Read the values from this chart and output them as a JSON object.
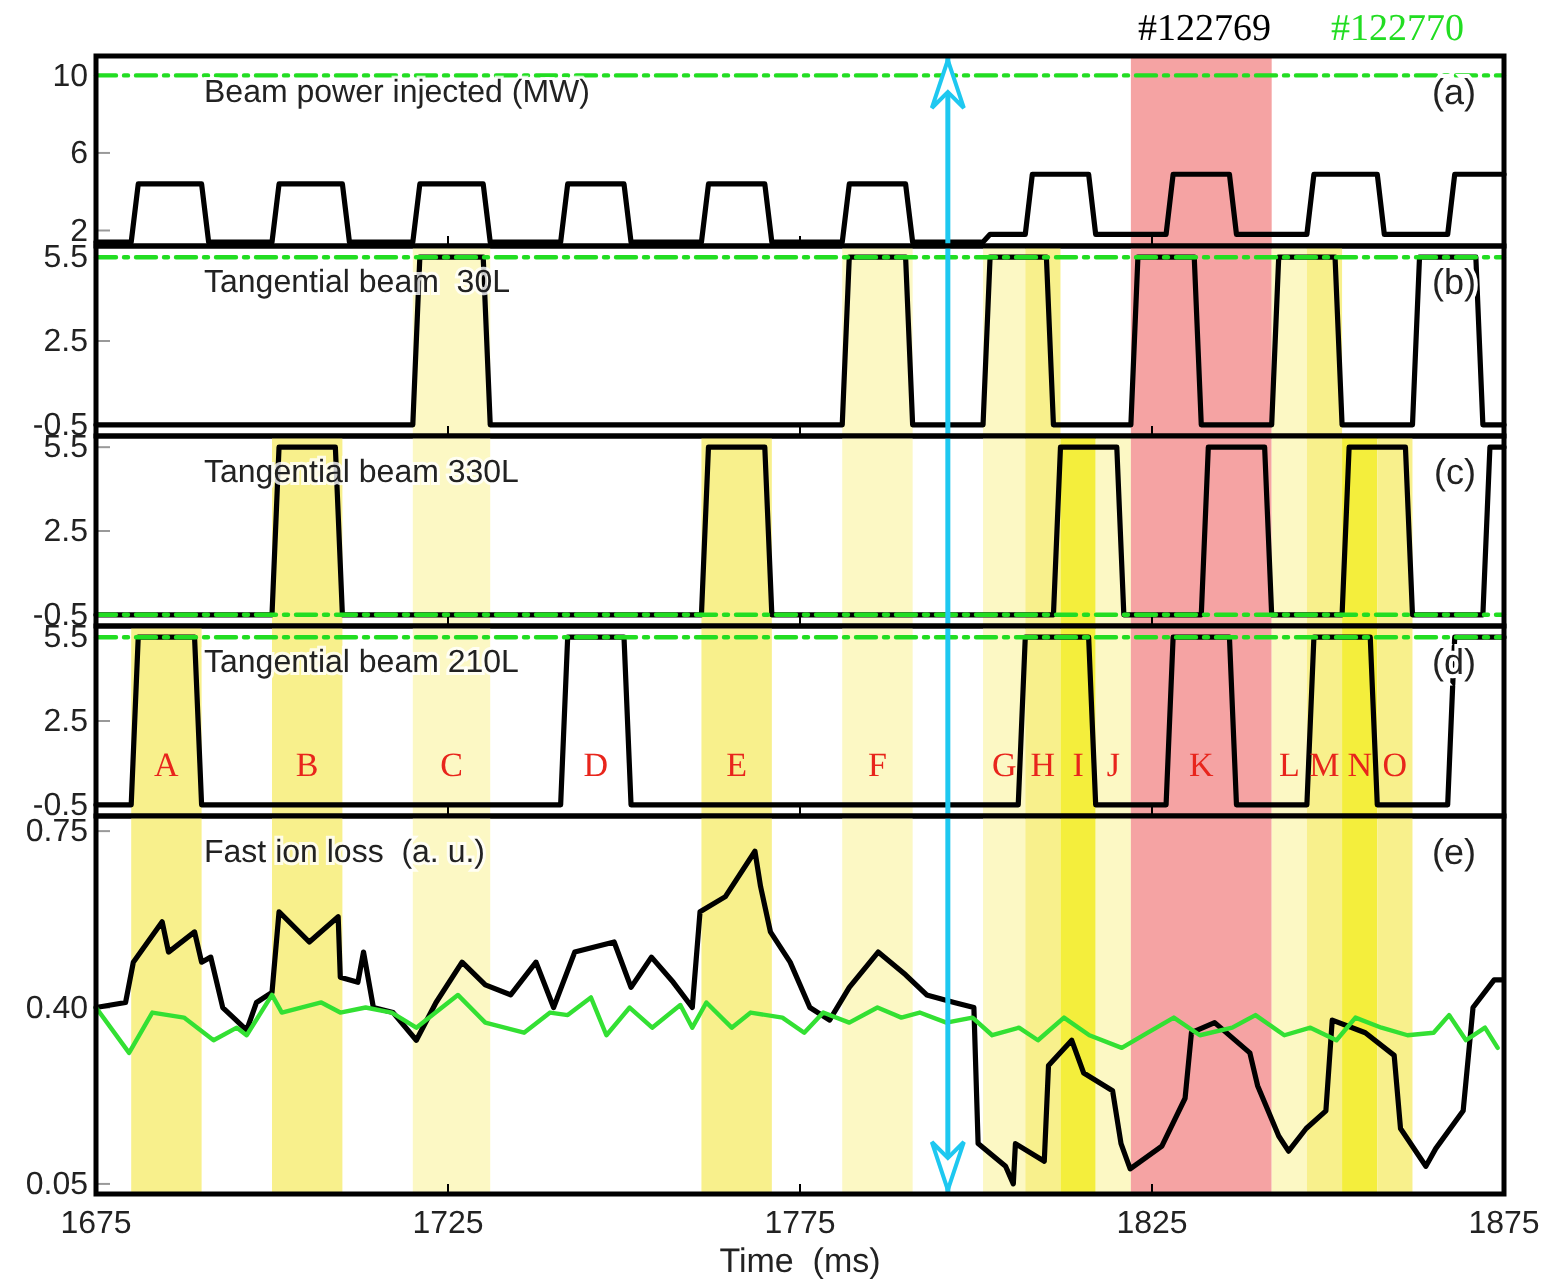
{
  "chart_data": [
    {
      "type": "line",
      "title": "Beam power injected (MW)",
      "annotations": [
        "(a)"
      ],
      "xlim": [
        1675,
        1875
      ],
      "xticks": [
        1675,
        1725,
        1775,
        1825,
        1875
      ],
      "ylim": [
        1.2,
        11
      ],
      "yticks": [
        2,
        6,
        10
      ],
      "tick_labels": "y",
      "legend": "top right",
      "series": [
        {
          "name": "#122769",
          "color": "#000000",
          "x": [
            1675,
            1680,
            1681,
            1690,
            1691,
            1700,
            1701,
            1710,
            1711,
            1720,
            1721,
            1730,
            1731,
            1741,
            1742,
            1750,
            1751,
            1761,
            1762,
            1770,
            1771,
            1781,
            1782,
            1790,
            1791,
            1801,
            1802,
            1807,
            1808,
            1816,
            1817,
            1827,
            1828,
            1836,
            1837,
            1847,
            1848,
            1857,
            1858,
            1867,
            1868,
            1875
          ],
          "values": [
            1.4,
            1.4,
            4.4,
            4.4,
            1.4,
            1.4,
            4.4,
            4.4,
            1.4,
            1.4,
            4.4,
            4.4,
            1.4,
            1.4,
            4.4,
            4.4,
            1.4,
            1.4,
            4.4,
            4.4,
            1.4,
            1.4,
            4.4,
            4.4,
            1.4,
            1.4,
            1.8,
            1.8,
            4.9,
            4.9,
            1.8,
            1.8,
            4.9,
            4.9,
            1.8,
            1.8,
            4.9,
            4.9,
            1.8,
            1.8,
            4.9,
            4.9
          ]
        },
        {
          "name": "#122770",
          "color": "#22dd22",
          "line_style": "dashed",
          "x": [
            1675,
            1875
          ],
          "values": [
            10,
            10
          ]
        }
      ],
      "bands": [
        {
          "axis": "x",
          "from": 1822,
          "to": 1842,
          "color": "#f5a3a3"
        }
      ],
      "ref_lines": [
        {
          "axis": "x",
          "value": 1796,
          "color": "#1ec8f0"
        }
      ]
    },
    {
      "type": "line",
      "title": "Tangential beam  30L",
      "annotations": [
        "(b)"
      ],
      "xlim": [
        1675,
        1875
      ],
      "xticks": [
        1675,
        1725,
        1775,
        1825,
        1875
      ],
      "ylim": [
        -0.9,
        5.9
      ],
      "yticks": [
        -0.5,
        2.5,
        5.5
      ],
      "tick_labels": "y",
      "series": [
        {
          "color": "#000000",
          "x": [
            1675,
            1720,
            1721,
            1730,
            1731,
            1781,
            1782,
            1790,
            1791,
            1801,
            1802,
            1810,
            1811,
            1822,
            1823,
            1831,
            1832,
            1842,
            1843,
            1851,
            1852,
            1862,
            1863,
            1871,
            1872,
            1875
          ],
          "values": [
            -0.5,
            -0.5,
            5.5,
            5.5,
            -0.5,
            -0.5,
            5.5,
            5.5,
            -0.5,
            -0.5,
            5.5,
            5.5,
            -0.5,
            -0.5,
            5.5,
            5.5,
            -0.5,
            -0.5,
            5.5,
            5.5,
            -0.5,
            -0.5,
            5.5,
            5.5,
            -0.5,
            -0.5
          ]
        },
        {
          "color": "#22dd22",
          "line_style": "dashed",
          "x": [
            1675,
            1875
          ],
          "values": [
            5.5,
            5.5
          ]
        }
      ],
      "bands": [
        {
          "axis": "x",
          "from": 1720,
          "to": 1731,
          "color": "#fcf8c4"
        },
        {
          "axis": "x",
          "from": 1781,
          "to": 1791,
          "color": "#fcf8c4"
        },
        {
          "axis": "x",
          "from": 1801,
          "to": 1807,
          "color": "#fcf8c4"
        },
        {
          "axis": "x",
          "from": 1807,
          "to": 1812,
          "color": "#f8f08c"
        },
        {
          "axis": "x",
          "from": 1822,
          "to": 1842,
          "color": "#f5a3a3"
        },
        {
          "axis": "x",
          "from": 1842,
          "to": 1847,
          "color": "#fcf8c4"
        },
        {
          "axis": "x",
          "from": 1847,
          "to": 1852,
          "color": "#f8f08c"
        }
      ],
      "ref_lines": [
        {
          "axis": "x",
          "value": 1796,
          "color": "#1ec8f0"
        }
      ]
    },
    {
      "type": "line",
      "title": "Tangential beam 330L",
      "annotations": [
        "(c)"
      ],
      "xlim": [
        1675,
        1875
      ],
      "xticks": [
        1675,
        1725,
        1775,
        1825,
        1875
      ],
      "ylim": [
        -0.9,
        5.9
      ],
      "yticks": [
        -0.5,
        2.5,
        5.5
      ],
      "tick_labels": "y",
      "series": [
        {
          "color": "#000000",
          "x": [
            1675,
            1700,
            1701,
            1709,
            1710,
            1761,
            1762,
            1770,
            1771,
            1811,
            1812,
            1820,
            1821,
            1832,
            1833,
            1841,
            1842,
            1852,
            1853,
            1861,
            1862,
            1872,
            1873,
            1875
          ],
          "values": [
            -0.5,
            -0.5,
            5.5,
            5.5,
            -0.5,
            -0.5,
            5.5,
            5.5,
            -0.5,
            -0.5,
            5.5,
            5.5,
            -0.5,
            -0.5,
            5.5,
            5.5,
            -0.5,
            -0.5,
            5.5,
            5.5,
            -0.5,
            -0.5,
            5.5,
            5.5
          ]
        },
        {
          "color": "#22dd22",
          "line_style": "dashed",
          "x": [
            1675,
            1875
          ],
          "values": [
            -0.5,
            -0.5
          ]
        }
      ],
      "bands": [
        {
          "axis": "x",
          "from": 1700,
          "to": 1710,
          "color": "#f8f08c"
        },
        {
          "axis": "x",
          "from": 1720,
          "to": 1731,
          "color": "#fcf8c4"
        },
        {
          "axis": "x",
          "from": 1761,
          "to": 1771,
          "color": "#f8f08c"
        },
        {
          "axis": "x",
          "from": 1781,
          "to": 1791,
          "color": "#fcf8c4"
        },
        {
          "axis": "x",
          "from": 1801,
          "to": 1807,
          "color": "#fcf8c4"
        },
        {
          "axis": "x",
          "from": 1807,
          "to": 1812,
          "color": "#f8f08c"
        },
        {
          "axis": "x",
          "from": 1812,
          "to": 1817,
          "color": "#f4ee3c"
        },
        {
          "axis": "x",
          "from": 1817,
          "to": 1822,
          "color": "#fcf8c4"
        },
        {
          "axis": "x",
          "from": 1822,
          "to": 1842,
          "color": "#f5a3a3"
        },
        {
          "axis": "x",
          "from": 1842,
          "to": 1847,
          "color": "#fcf8c4"
        },
        {
          "axis": "x",
          "from": 1847,
          "to": 1852,
          "color": "#f8f08c"
        },
        {
          "axis": "x",
          "from": 1852,
          "to": 1857,
          "color": "#f4ee3c"
        },
        {
          "axis": "x",
          "from": 1857,
          "to": 1862,
          "color": "#f8f08c"
        }
      ],
      "ref_lines": [
        {
          "axis": "x",
          "value": 1796,
          "color": "#1ec8f0"
        }
      ]
    },
    {
      "type": "line",
      "title": "Tangential beam 210L",
      "annotations": [
        "(d)",
        "D"
      ],
      "xlim": [
        1675,
        1875
      ],
      "xticks": [
        1675,
        1725,
        1775,
        1825,
        1875
      ],
      "ylim": [
        -0.9,
        5.9
      ],
      "yticks": [
        -0.5,
        2.5,
        5.5
      ],
      "tick_labels": "y",
      "series": [
        {
          "color": "#000000",
          "x": [
            1675,
            1680,
            1681,
            1689,
            1690,
            1741,
            1742,
            1750,
            1751,
            1806,
            1807,
            1816,
            1817,
            1827,
            1828,
            1836,
            1837,
            1847,
            1848,
            1856,
            1857,
            1867,
            1868,
            1875
          ],
          "values": [
            -0.5,
            -0.5,
            5.5,
            5.5,
            -0.5,
            -0.5,
            5.5,
            5.5,
            -0.5,
            -0.5,
            5.5,
            5.5,
            -0.5,
            -0.5,
            5.5,
            5.5,
            -0.5,
            -0.5,
            5.5,
            5.5,
            -0.5,
            -0.5,
            5.5,
            5.5
          ]
        },
        {
          "color": "#22dd22",
          "line_style": "dashed",
          "x": [
            1675,
            1875
          ],
          "values": [
            5.5,
            5.5
          ]
        }
      ],
      "bands": [
        {
          "axis": "x",
          "from": 1680,
          "to": 1690,
          "color": "#f8f08c",
          "label": "A"
        },
        {
          "axis": "x",
          "from": 1700,
          "to": 1710,
          "color": "#f8f08c",
          "label": "B"
        },
        {
          "axis": "x",
          "from": 1720,
          "to": 1731,
          "color": "#fcf8c4",
          "label": "C"
        },
        {
          "axis": "x",
          "from": 1761,
          "to": 1771,
          "color": "#f8f08c",
          "label": "E"
        },
        {
          "axis": "x",
          "from": 1781,
          "to": 1791,
          "color": "#fcf8c4",
          "label": "F"
        },
        {
          "axis": "x",
          "from": 1801,
          "to": 1807,
          "color": "#fcf8c4",
          "label": "G"
        },
        {
          "axis": "x",
          "from": 1807,
          "to": 1812,
          "color": "#f8f08c",
          "label": "H"
        },
        {
          "axis": "x",
          "from": 1812,
          "to": 1817,
          "color": "#f4ee3c",
          "label": "I"
        },
        {
          "axis": "x",
          "from": 1817,
          "to": 1822,
          "color": "#fcf8c4",
          "label": "J"
        },
        {
          "axis": "x",
          "from": 1822,
          "to": 1842,
          "color": "#f5a3a3",
          "label": "K"
        },
        {
          "axis": "x",
          "from": 1842,
          "to": 1847,
          "color": "#fcf8c4",
          "label": "L"
        },
        {
          "axis": "x",
          "from": 1847,
          "to": 1852,
          "color": "#f8f08c",
          "label": "M"
        },
        {
          "axis": "x",
          "from": 1852,
          "to": 1857,
          "color": "#f4ee3c",
          "label": "N"
        },
        {
          "axis": "x",
          "from": 1857,
          "to": 1862,
          "color": "#f8f08c",
          "label": "O"
        }
      ],
      "ref_lines": [
        {
          "axis": "x",
          "value": 1796,
          "color": "#1ec8f0"
        }
      ]
    },
    {
      "type": "line",
      "title": "Fast ion loss  (a. u.)",
      "xlabel": "Time  (ms)",
      "annotations": [
        "(e)"
      ],
      "xlim": [
        1675,
        1875
      ],
      "xticks": [
        1675,
        1725,
        1775,
        1825,
        1875
      ],
      "ylim": [
        0.03,
        0.78
      ],
      "yticks": [
        0.05,
        {
          "value": 0.4,
          "label": "0.40"
        },
        0.75
      ],
      "series": [
        {
          "color": "#000000",
          "x": [
            1675,
            1679.2,
            1680.3,
            1684.4,
            1685.3,
            1689,
            1690,
            1691.3,
            1693,
            1696.4,
            1697.8,
            1700,
            1701,
            1705.3,
            1709.4,
            1709.7,
            1712.2,
            1713,
            1714.4,
            1717.2,
            1720.5,
            1723.3,
            1727,
            1730.3,
            1733.9,
            1737.5,
            1740,
            1743,
            1748.6,
            1751,
            1753.9,
            1757,
            1759.7,
            1760.8,
            1764.4,
            1768.6,
            1769.4,
            1770.8,
            1773.6,
            1776.4,
            1779.2,
            1782,
            1786.1,
            1790,
            1793,
            1796.9,
            1799.7,
            1800.3,
            1804.2,
            1805.3,
            1805.6,
            1809.7,
            1810.3,
            1813.6,
            1815.3,
            1819.4,
            1820.6,
            1821.9,
            1826.4,
            1829.7,
            1830.6,
            1833.9,
            1838.9,
            1840,
            1843,
            1844.4,
            1846.9,
            1849.7,
            1850.6,
            1855.3,
            1859.4,
            1860.3,
            1863.9,
            1865.3,
            1869.2,
            1870.6,
            1873.6,
            1874.7
          ],
          "values": [
            0.4,
            0.41,
            0.49,
            0.57,
            0.51,
            0.55,
            0.49,
            0.5,
            0.4,
            0.355,
            0.41,
            0.43,
            0.59,
            0.53,
            0.58,
            0.46,
            0.45,
            0.51,
            0.4,
            0.39,
            0.335,
            0.41,
            0.49,
            0.445,
            0.425,
            0.49,
            0.4,
            0.51,
            0.53,
            0.44,
            0.5,
            0.45,
            0.4,
            0.59,
            0.62,
            0.71,
            0.64,
            0.55,
            0.49,
            0.4,
            0.375,
            0.44,
            0.51,
            0.465,
            0.425,
            0.41,
            0.4,
            0.13,
            0.085,
            0.05,
            0.13,
            0.095,
            0.285,
            0.335,
            0.27,
            0.235,
            0.13,
            0.08,
            0.125,
            0.22,
            0.35,
            0.37,
            0.31,
            0.245,
            0.145,
            0.115,
            0.16,
            0.195,
            0.375,
            0.35,
            0.305,
            0.16,
            0.085,
            0.12,
            0.195,
            0.4,
            0.455,
            0.455
          ]
        },
        {
          "color": "#33e033",
          "x": [
            1675,
            1679.7,
            1683,
            1687.5,
            1691.7,
            1695,
            1696.4,
            1700,
            1701.4,
            1707,
            1709.7,
            1713.3,
            1717,
            1720.5,
            1726.4,
            1730.3,
            1735.8,
            1739.5,
            1742,
            1745.3,
            1747.5,
            1750.8,
            1754,
            1758,
            1759.7,
            1761.7,
            1765.3,
            1768,
            1772.5,
            1775.6,
            1778.3,
            1782,
            1786,
            1789.4,
            1792,
            1795.8,
            1799.5,
            1802.3,
            1806.1,
            1808.8,
            1812.5,
            1816.1,
            1820.7,
            1824.4,
            1828.1,
            1831.8,
            1836.4,
            1839.7,
            1843.8,
            1847.5,
            1851.2,
            1853.9,
            1857.6,
            1861.3,
            1865,
            1867.2,
            1869.6,
            1872.3,
            1874.1
          ],
          "values": [
            0.4,
            0.31,
            0.39,
            0.38,
            0.335,
            0.36,
            0.345,
            0.425,
            0.39,
            0.41,
            0.39,
            0.4,
            0.39,
            0.36,
            0.425,
            0.37,
            0.35,
            0.39,
            0.385,
            0.42,
            0.345,
            0.4,
            0.36,
            0.405,
            0.36,
            0.41,
            0.36,
            0.39,
            0.38,
            0.35,
            0.39,
            0.37,
            0.4,
            0.38,
            0.39,
            0.37,
            0.38,
            0.345,
            0.36,
            0.335,
            0.38,
            0.345,
            0.32,
            0.35,
            0.38,
            0.345,
            0.36,
            0.385,
            0.345,
            0.36,
            0.335,
            0.38,
            0.36,
            0.345,
            0.35,
            0.385,
            0.335,
            0.36,
            0.32
          ]
        }
      ],
      "bands": [
        {
          "axis": "x",
          "from": 1680,
          "to": 1690,
          "color": "#f8f08c"
        },
        {
          "axis": "x",
          "from": 1700,
          "to": 1710,
          "color": "#f8f08c"
        },
        {
          "axis": "x",
          "from": 1720,
          "to": 1731,
          "color": "#fcf8c4"
        },
        {
          "axis": "x",
          "from": 1761,
          "to": 1771,
          "color": "#f8f08c"
        },
        {
          "axis": "x",
          "from": 1781,
          "to": 1791,
          "color": "#fcf8c4"
        },
        {
          "axis": "x",
          "from": 1801,
          "to": 1807,
          "color": "#fcf8c4"
        },
        {
          "axis": "x",
          "from": 1807,
          "to": 1812,
          "color": "#f8f08c"
        },
        {
          "axis": "x",
          "from": 1812,
          "to": 1817,
          "color": "#f4ee3c"
        },
        {
          "axis": "x",
          "from": 1817,
          "to": 1822,
          "color": "#fcf8c4"
        },
        {
          "axis": "x",
          "from": 1822,
          "to": 1842,
          "color": "#f5a3a3"
        },
        {
          "axis": "x",
          "from": 1842,
          "to": 1847,
          "color": "#fcf8c4"
        },
        {
          "axis": "x",
          "from": 1847,
          "to": 1852,
          "color": "#f8f08c"
        },
        {
          "axis": "x",
          "from": 1852,
          "to": 1857,
          "color": "#f4ee3c"
        },
        {
          "axis": "x",
          "from": 1857,
          "to": 1862,
          "color": "#f8f08c"
        }
      ],
      "ref_lines": [
        {
          "axis": "x",
          "value": 1796,
          "color": "#1ec8f0"
        }
      ]
    }
  ]
}
